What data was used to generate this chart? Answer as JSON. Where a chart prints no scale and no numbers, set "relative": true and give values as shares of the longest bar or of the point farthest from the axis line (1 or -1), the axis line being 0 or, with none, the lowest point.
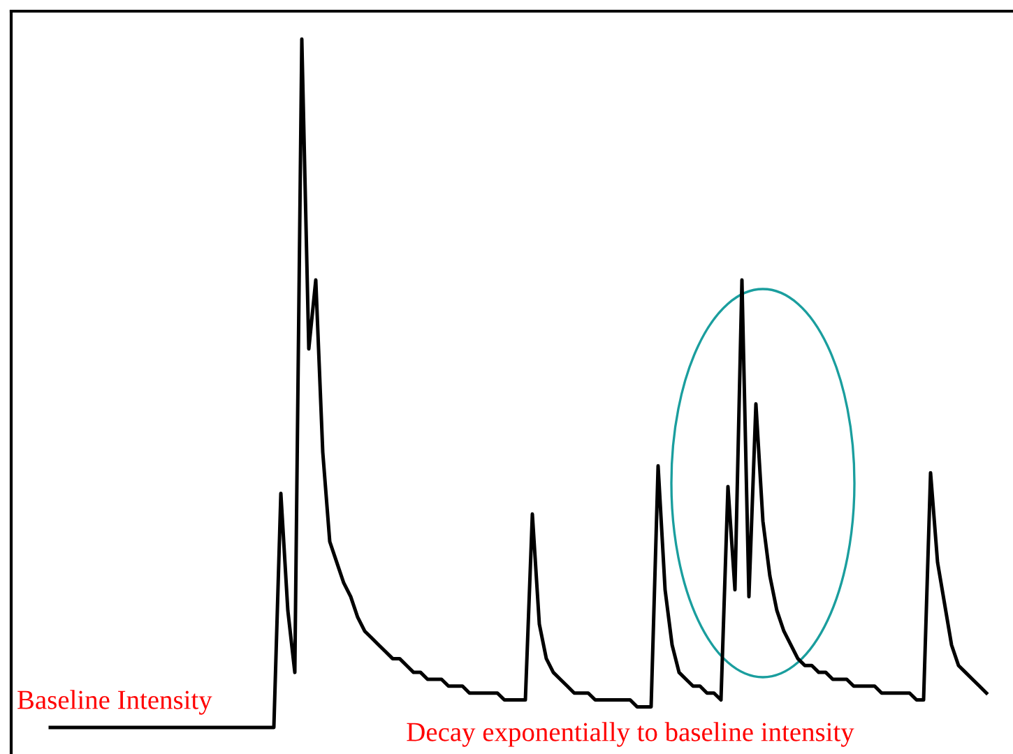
{
  "chart_data": {
    "type": "line",
    "relative": true,
    "marker": "none",
    "line_style": "solid",
    "annotations": [
      "Baseline Intensity",
      "Decay exponentially to baseline intensity"
    ],
    "categories": [
      null,
      null,
      null,
      null,
      null,
      null,
      null,
      null,
      null,
      null,
      null,
      null,
      null,
      null,
      null,
      null,
      null,
      null,
      null,
      null,
      null,
      null,
      null,
      null,
      null,
      null,
      null,
      null,
      null,
      null,
      null,
      null,
      null,
      null,
      null,
      null,
      null,
      null,
      null,
      null,
      null,
      null,
      null,
      null,
      null,
      null,
      null,
      null,
      null,
      null,
      null,
      null,
      null,
      null,
      null,
      null,
      null,
      null,
      null,
      null,
      null,
      null,
      null,
      null,
      null,
      null,
      null,
      null,
      null,
      null,
      null,
      null,
      null,
      null,
      null,
      null,
      null,
      null,
      null,
      null,
      null,
      null,
      null,
      null,
      null,
      null,
      null,
      null,
      null,
      null,
      null,
      null,
      null,
      null,
      null,
      null,
      null,
      null,
      null,
      null,
      null,
      null,
      null,
      null,
      null,
      null,
      null,
      null,
      null,
      null,
      null,
      null,
      null,
      null,
      null,
      null,
      null,
      null,
      null,
      null,
      null,
      null,
      null,
      null,
      null,
      null,
      null,
      null,
      null,
      null,
      null,
      null,
      null,
      null,
      null
    ],
    "series": [
      {
        "color": "#000000",
        "values": [
          0,
          0,
          0,
          0,
          0,
          0,
          0,
          0,
          0,
          0,
          0,
          0,
          0,
          0,
          0,
          0,
          0,
          0,
          0,
          0,
          0,
          0,
          0,
          0,
          0,
          0,
          0,
          0,
          0,
          0,
          0,
          0,
          0,
          0.34,
          0.17,
          0.08,
          1,
          0.55,
          0.65,
          0.4,
          0.27,
          0.24,
          0.21,
          0.19,
          0.16,
          0.14,
          0.13,
          0.12,
          0.11,
          0.1,
          0.1,
          0.09,
          0.08,
          0.08,
          0.07,
          0.07,
          0.07,
          0.06,
          0.06,
          0.06,
          0.05,
          0.05,
          0.05,
          0.05,
          0.05,
          0.04,
          0.04,
          0.04,
          0.04,
          0.31,
          0.15,
          0.1,
          0.08,
          0.07,
          0.06,
          0.05,
          0.05,
          0.05,
          0.04,
          0.04,
          0.04,
          0.04,
          0.04,
          0.04,
          0.03,
          0.03,
          0.03,
          0.38,
          0.2,
          0.12,
          0.08,
          0.07,
          0.06,
          0.06,
          0.05,
          0.05,
          0.04,
          0.35,
          0.2,
          0.65,
          0.19,
          0.47,
          0.3,
          0.22,
          0.17,
          0.14,
          0.12,
          0.1,
          0.09,
          0.09,
          0.08,
          0.08,
          0.07,
          0.07,
          0.07,
          0.06,
          0.06,
          0.06,
          0.06,
          0.05,
          0.05,
          0.05,
          0.05,
          0.05,
          0.04,
          0.04,
          0.37,
          0.24,
          0.18,
          0.12,
          0.09,
          0.08,
          0.07,
          0.06,
          0.05
        ]
      }
    ]
  }
}
